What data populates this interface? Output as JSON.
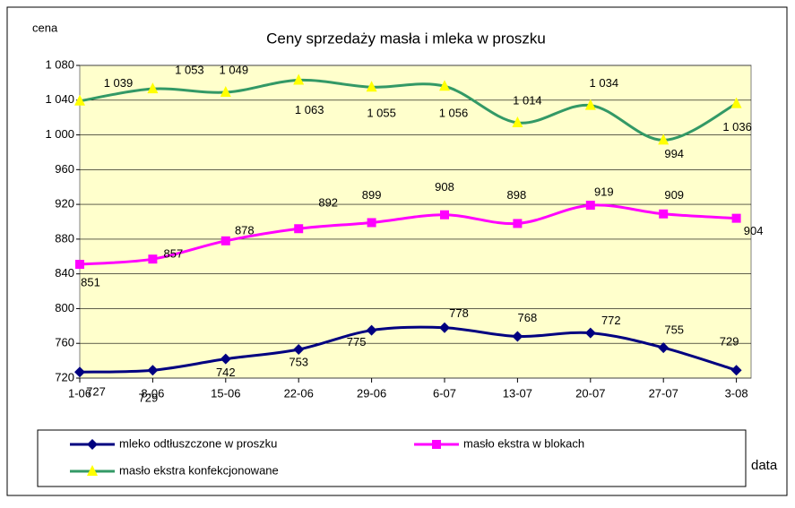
{
  "chart_data": {
    "type": "line",
    "title": "Ceny sprzedaży masła i mleka w proszku",
    "y_label": "cena",
    "x_label": "data",
    "categories": [
      "1-06",
      "8-06",
      "15-06",
      "22-06",
      "29-06",
      "6-07",
      "13-07",
      "20-07",
      "27-07",
      "3-08"
    ],
    "series": [
      {
        "name": "mleko odtłuszczone w proszku",
        "color": "#000080",
        "marker": "diamond",
        "values": [
          727,
          729,
          742,
          753,
          775,
          778,
          768,
          772,
          755,
          729
        ]
      },
      {
        "name": "masło ekstra w blokach",
        "color": "#ff00ff",
        "marker": "square",
        "values": [
          851,
          857,
          878,
          892,
          899,
          908,
          898,
          919,
          909,
          904
        ]
      },
      {
        "name": "masło ekstra konfekcjonowane",
        "color": "#339966",
        "marker": "triangle",
        "marker_color": "#ffff00",
        "values": [
          1039,
          1053,
          1049,
          1063,
          1055,
          1056,
          1014,
          1034,
          994,
          1036
        ],
        "value_labels": [
          "1 039",
          "1 053",
          "1 049",
          "1 063",
          "1 055",
          "1 056",
          "1 014",
          "1 034",
          "994",
          "1 036"
        ]
      }
    ],
    "ylim": [
      720,
      1080
    ],
    "yticks": [
      720,
      760,
      800,
      840,
      880,
      920,
      960,
      {
        "value": 1000,
        "label": "1 000"
      },
      {
        "value": 1040,
        "label": "1 040"
      },
      {
        "value": 1080,
        "label": "1 080"
      }
    ],
    "grid": true,
    "legend": "bottom"
  }
}
